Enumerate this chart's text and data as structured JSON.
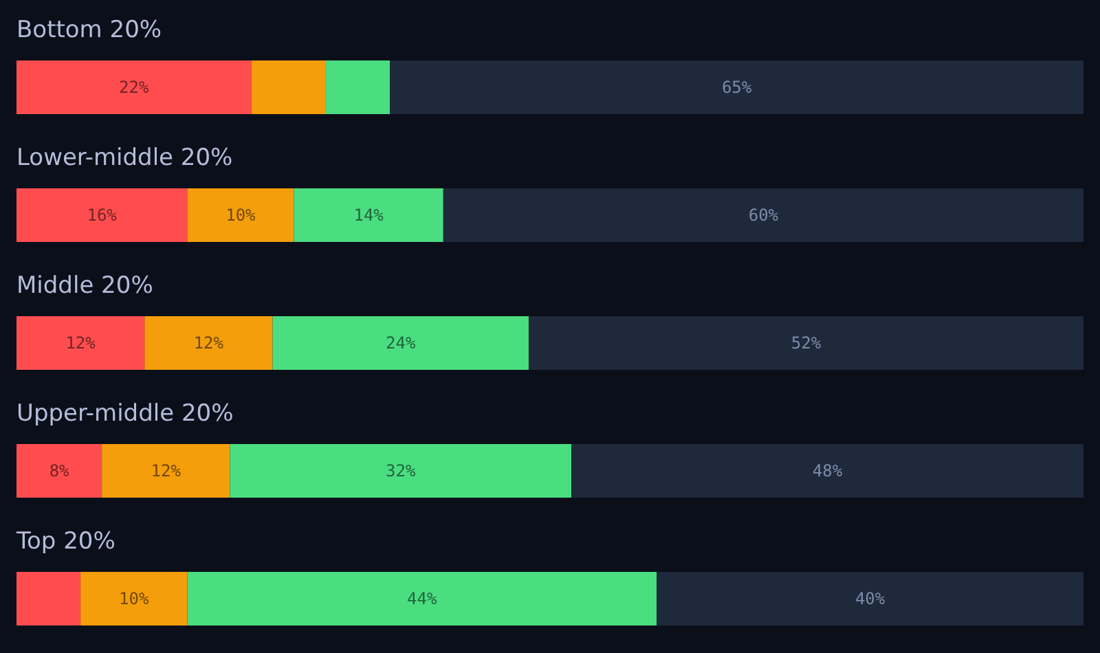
{
  "chart_data": {
    "type": "bar",
    "orientation": "horizontal",
    "stacked": true,
    "categories": [
      "Bottom 20%",
      "Lower-middle 20%",
      "Middle 20%",
      "Upper-middle 20%",
      "Top 20%"
    ],
    "xlim": [
      0,
      100
    ],
    "series": [
      {
        "color": "#ff4d4f",
        "values": [
          22,
          16,
          12,
          8,
          6
        ],
        "value_labels": [
          "22%",
          "16%",
          "12%",
          "8%",
          null
        ]
      },
      {
        "color": "#f59e0b",
        "values": [
          7,
          10,
          12,
          12,
          10
        ],
        "value_labels": [
          null,
          "10%",
          "12%",
          "12%",
          "10%"
        ]
      },
      {
        "color": "#4ade80",
        "values": [
          6,
          14,
          24,
          32,
          44
        ],
        "value_labels": [
          null,
          "14%",
          "24%",
          "32%",
          "44%"
        ]
      },
      {
        "color": "#1e293b",
        "values": [
          65,
          60,
          52,
          48,
          40
        ],
        "value_labels": [
          "65%",
          "60%",
          "52%",
          "48%",
          "40%"
        ]
      }
    ]
  }
}
